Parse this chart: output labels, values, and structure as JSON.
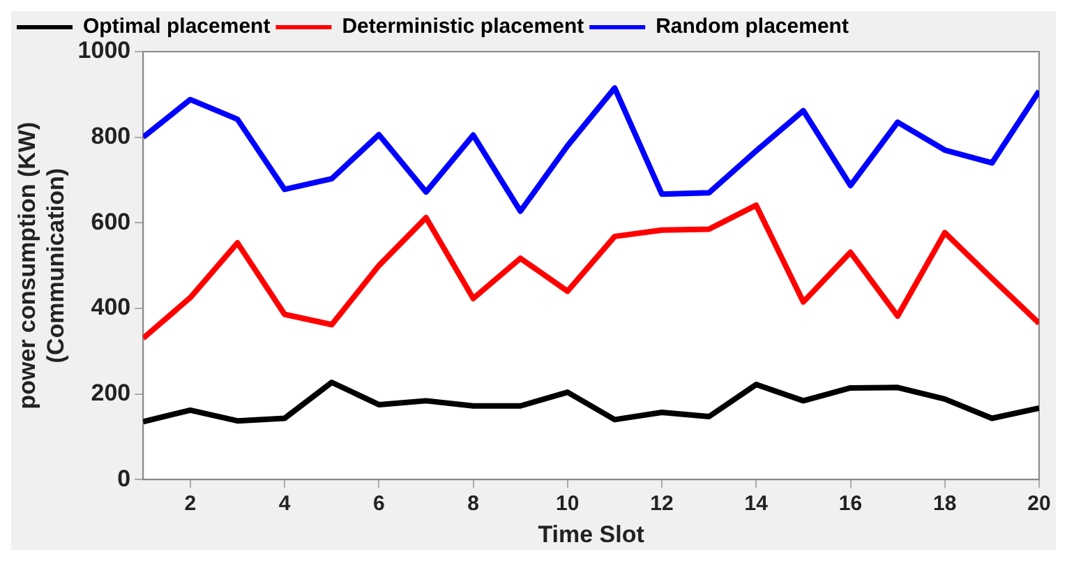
{
  "chart_data": {
    "type": "line",
    "xlabel": "Time Slot",
    "ylabel": "power consumption (KW)\n(Communication)",
    "x": [
      1,
      2,
      3,
      4,
      5,
      6,
      7,
      8,
      9,
      10,
      11,
      12,
      13,
      14,
      15,
      16,
      17,
      18,
      19,
      20
    ],
    "series": [
      {
        "name": "Optimal placement",
        "color": "#000000",
        "values": [
          135,
          162,
          137,
          143,
          227,
          175,
          184,
          172,
          172,
          204,
          140,
          157,
          147,
          222,
          184,
          214,
          215,
          188,
          143,
          167
        ]
      },
      {
        "name": "Deterministic placement",
        "color": "#ff0000",
        "values": [
          330,
          425,
          553,
          386,
          362,
          500,
          612,
          423,
          517,
          440,
          568,
          583,
          585,
          641,
          415,
          531,
          382,
          577,
          470,
          365
        ]
      },
      {
        "name": "Random placement",
        "color": "#0000ff",
        "values": [
          800,
          888,
          842,
          678,
          703,
          806,
          672,
          805,
          627,
          780,
          915,
          667,
          670,
          768,
          862,
          687,
          835,
          770,
          740,
          908
        ]
      }
    ],
    "xlim": [
      1,
      20
    ],
    "xticks": [
      2,
      4,
      6,
      8,
      10,
      12,
      14,
      16,
      18,
      20
    ],
    "ylim": [
      0,
      1000
    ],
    "yticks": [
      0,
      200,
      400,
      600,
      800,
      1000
    ],
    "grid": false,
    "legend": "top left",
    "marker": "none",
    "line_style": "solid"
  }
}
